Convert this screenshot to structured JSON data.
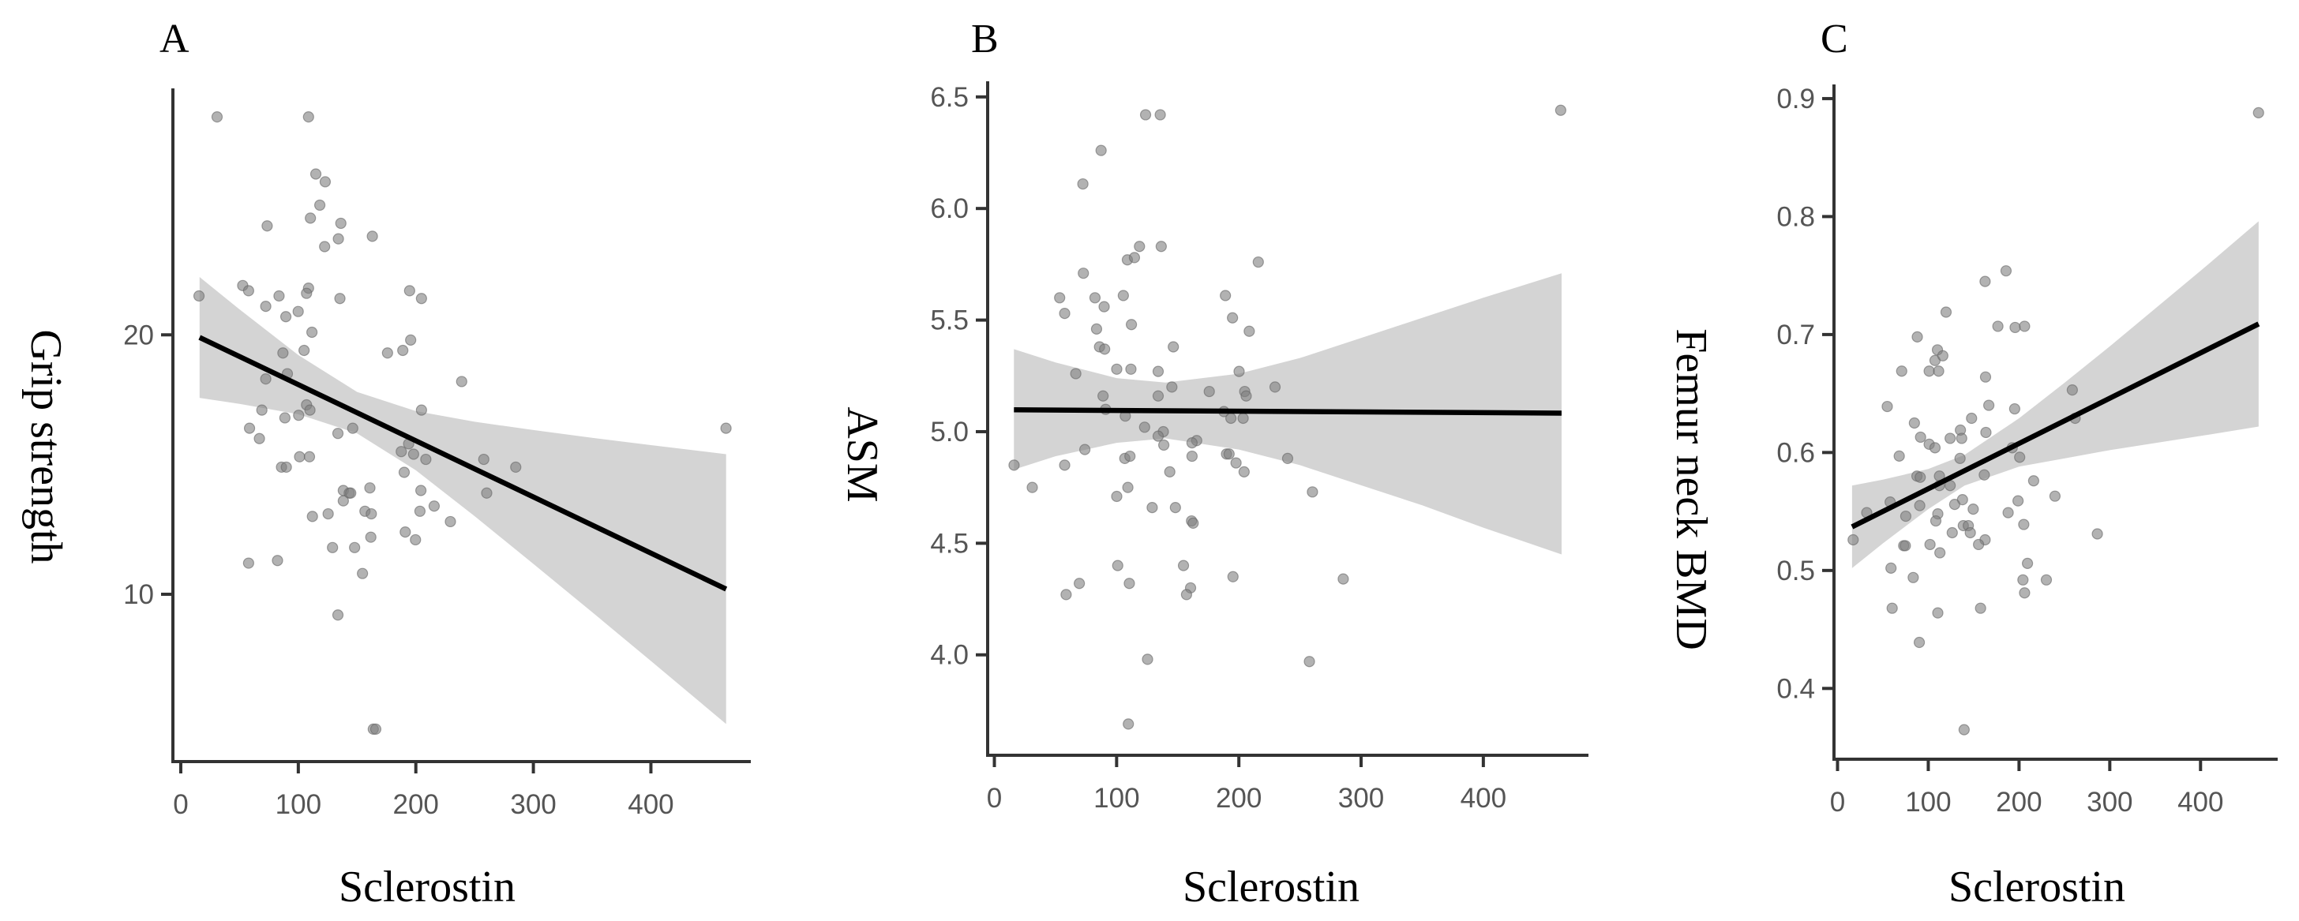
{
  "chart_data": [
    {
      "type": "scatter",
      "panel_label": "A",
      "title": "",
      "xlabel": "Sclerostin",
      "ylabel": "Grip strength",
      "xlim": [
        -6.7,
        485
      ],
      "ylim": [
        3.55,
        29.5
      ],
      "xticks": [
        0,
        100,
        200,
        300,
        400
      ],
      "yticks": [
        10,
        20
      ],
      "grid": false,
      "colors": {
        "point": "#7f7f7f",
        "line": "#000000",
        "band": "#d4d4d4"
      },
      "points": [
        [
          30.9,
          28.4
        ],
        [
          108.7,
          28.4
        ],
        [
          114.9,
          26.2
        ],
        [
          122.9,
          25.9
        ],
        [
          118.3,
          25.0
        ],
        [
          110.3,
          24.5
        ],
        [
          73.5,
          24.2
        ],
        [
          136.2,
          24.3
        ],
        [
          134.1,
          23.7
        ],
        [
          163,
          23.8
        ],
        [
          122.4,
          23.4
        ],
        [
          15.5,
          21.5
        ],
        [
          52.7,
          21.9
        ],
        [
          57.7,
          21.7
        ],
        [
          83.6,
          21.5
        ],
        [
          108.7,
          21.8
        ],
        [
          107,
          21.6
        ],
        [
          72.3,
          21.1
        ],
        [
          99.9,
          20.9
        ],
        [
          89.4,
          20.7
        ],
        [
          135.4,
          21.4
        ],
        [
          194.7,
          21.7
        ],
        [
          204.8,
          21.4
        ],
        [
          111.6,
          20.1
        ],
        [
          195.6,
          19.8
        ],
        [
          86.9,
          19.3
        ],
        [
          104.9,
          19.4
        ],
        [
          175.9,
          19.3
        ],
        [
          188.9,
          19.4
        ],
        [
          90.7,
          18.5
        ],
        [
          72.3,
          18.3
        ],
        [
          239,
          18.2
        ],
        [
          69,
          17.1
        ],
        [
          107,
          17.3
        ],
        [
          109.9,
          17.1
        ],
        [
          204.8,
          17.1
        ],
        [
          88.6,
          16.8
        ],
        [
          100.3,
          16.9
        ],
        [
          58.5,
          16.4
        ],
        [
          66.9,
          16.0
        ],
        [
          133.7,
          16.2
        ],
        [
          146.3,
          16.4
        ],
        [
          463.9,
          16.4
        ],
        [
          187.6,
          15.5
        ],
        [
          193.9,
          15.8
        ],
        [
          198.1,
          15.4
        ],
        [
          208.5,
          15.2
        ],
        [
          101.1,
          15.3
        ],
        [
          109.5,
          15.3
        ],
        [
          85.7,
          14.9
        ],
        [
          89.8,
          14.9
        ],
        [
          190.1,
          14.7
        ],
        [
          257.8,
          15.2
        ],
        [
          285,
          14.9
        ],
        [
          138.3,
          14.0
        ],
        [
          143.3,
          13.9
        ],
        [
          144.6,
          13.9
        ],
        [
          160.9,
          14.1
        ],
        [
          204.3,
          14.0
        ],
        [
          260.3,
          13.9
        ],
        [
          138.3,
          13.6
        ],
        [
          156.7,
          13.2
        ],
        [
          162.1,
          13.1
        ],
        [
          112,
          13.0
        ],
        [
          125.4,
          13.1
        ],
        [
          203.5,
          13.2
        ],
        [
          215.6,
          13.4
        ],
        [
          229.4,
          12.8
        ],
        [
          191,
          12.4
        ],
        [
          161.7,
          12.2
        ],
        [
          199.7,
          12.1
        ],
        [
          129.1,
          11.8
        ],
        [
          147.9,
          11.8
        ],
        [
          57.7,
          11.2
        ],
        [
          82.3,
          11.3
        ],
        [
          154.6,
          10.8
        ],
        [
          133.7,
          9.2
        ],
        [
          163.8,
          4.8
        ],
        [
          165.9,
          4.8
        ]
      ],
      "fit_line": {
        "x": [
          16,
          464
        ],
        "y": [
          19.9,
          10.2
        ]
      },
      "confidence_band": {
        "x": [
          16,
          50,
          100,
          150,
          200,
          250,
          300,
          350,
          400,
          464
        ],
        "lower": [
          17.57,
          17.34,
          16.94,
          16.2,
          14.78,
          13.01,
          11.17,
          9.31,
          7.43,
          5.0
        ],
        "upper": [
          22.23,
          20.98,
          19.22,
          17.8,
          17.06,
          16.65,
          16.33,
          16.03,
          15.75,
          15.4
        ]
      }
    },
    {
      "type": "scatter",
      "panel_label": "B",
      "title": "",
      "xlabel": "Sclerostin",
      "ylabel": "ASM",
      "xlim": [
        -5.5,
        486
      ],
      "ylim": [
        3.55,
        6.57
      ],
      "xticks": [
        0,
        100,
        200,
        300,
        400
      ],
      "yticks": [
        "4.0",
        "4.5",
        "5.0",
        "5.5",
        "6.0",
        "6.5"
      ],
      "grid": false,
      "colors": {
        "point": "#7f7f7f",
        "line": "#000000",
        "band": "#d4d4d4"
      },
      "points": [
        [
          123.7,
          6.42
        ],
        [
          135.7,
          6.42
        ],
        [
          463.3,
          6.44
        ],
        [
          87.3,
          6.26
        ],
        [
          72.4,
          6.11
        ],
        [
          118.7,
          5.83
        ],
        [
          136.5,
          5.83
        ],
        [
          108.8,
          5.77
        ],
        [
          114.6,
          5.78
        ],
        [
          215.9,
          5.76
        ],
        [
          72.8,
          5.71
        ],
        [
          53.4,
          5.6
        ],
        [
          82.3,
          5.6
        ],
        [
          105.5,
          5.61
        ],
        [
          189,
          5.61
        ],
        [
          89.8,
          5.56
        ],
        [
          57.5,
          5.53
        ],
        [
          194.8,
          5.51
        ],
        [
          112.1,
          5.48
        ],
        [
          83.6,
          5.46
        ],
        [
          208.5,
          5.45
        ],
        [
          86,
          5.38
        ],
        [
          90.2,
          5.37
        ],
        [
          146.4,
          5.38
        ],
        [
          66.6,
          5.26
        ],
        [
          100.1,
          5.28
        ],
        [
          111.7,
          5.28
        ],
        [
          134,
          5.27
        ],
        [
          200.2,
          5.27
        ],
        [
          145.2,
          5.2
        ],
        [
          229.6,
          5.2
        ],
        [
          175.8,
          5.18
        ],
        [
          204.8,
          5.18
        ],
        [
          88.9,
          5.16
        ],
        [
          134,
          5.16
        ],
        [
          206,
          5.16
        ],
        [
          91,
          5.1
        ],
        [
          187.8,
          5.09
        ],
        [
          107.1,
          5.07
        ],
        [
          193.5,
          5.06
        ],
        [
          203.5,
          5.06
        ],
        [
          122.9,
          5.02
        ],
        [
          138.2,
          5.0
        ],
        [
          134,
          4.98
        ],
        [
          165.5,
          4.96
        ],
        [
          161.7,
          4.95
        ],
        [
          138.6,
          4.94
        ],
        [
          74,
          4.92
        ],
        [
          106.7,
          4.88
        ],
        [
          110.9,
          4.89
        ],
        [
          161.7,
          4.89
        ],
        [
          189.9,
          4.9
        ],
        [
          192,
          4.9
        ],
        [
          239.9,
          4.88
        ],
        [
          197.7,
          4.86
        ],
        [
          16.1,
          4.85
        ],
        [
          57.5,
          4.85
        ],
        [
          143.5,
          4.82
        ],
        [
          204.3,
          4.82
        ],
        [
          31,
          4.75
        ],
        [
          109.2,
          4.75
        ],
        [
          260.2,
          4.73
        ],
        [
          100.1,
          4.71
        ],
        [
          129.1,
          4.66
        ],
        [
          148.1,
          4.66
        ],
        [
          161.3,
          4.6
        ],
        [
          162.6,
          4.59
        ],
        [
          100.9,
          4.4
        ],
        [
          154.7,
          4.4
        ],
        [
          195.2,
          4.35
        ],
        [
          285.4,
          4.34
        ],
        [
          69.5,
          4.32
        ],
        [
          110.4,
          4.32
        ],
        [
          160.5,
          4.3
        ],
        [
          58.7,
          4.27
        ],
        [
          157.2,
          4.27
        ],
        [
          125.3,
          3.98
        ],
        [
          257.7,
          3.97
        ],
        [
          109.6,
          3.69
        ]
      ],
      "fit_line": {
        "x": [
          16,
          464
        ],
        "y": [
          5.098,
          5.083
        ]
      },
      "confidence_band": {
        "x": [
          16,
          50,
          100,
          140,
          200,
          250,
          300,
          350,
          400,
          464
        ],
        "lower": [
          4.83,
          4.89,
          4.95,
          4.97,
          4.92,
          4.85,
          4.76,
          4.67,
          4.57,
          4.45
        ],
        "upper": [
          5.37,
          5.31,
          5.24,
          5.22,
          5.26,
          5.33,
          5.42,
          5.51,
          5.6,
          5.71
        ]
      }
    },
    {
      "type": "scatter",
      "panel_label": "C",
      "title": "",
      "xlabel": "Sclerostin",
      "ylabel": "Femur neck BMD",
      "xlim": [
        -3.9,
        485
      ],
      "ylim": [
        0.34,
        0.912
      ],
      "xticks": [
        0,
        100,
        200,
        300,
        400
      ],
      "yticks": [
        "0.4",
        "0.5",
        "0.6",
        "0.7",
        "0.8",
        "0.9"
      ],
      "grid": false,
      "colors": {
        "point": "#7f7f7f",
        "line": "#000000",
        "band": "#d4d4d4"
      },
      "points": [
        [
          463.9,
          0.888
        ],
        [
          185.7,
          0.754
        ],
        [
          162.6,
          0.745
        ],
        [
          119.6,
          0.719
        ],
        [
          176.7,
          0.707
        ],
        [
          195.7,
          0.706
        ],
        [
          206.1,
          0.707
        ],
        [
          87.9,
          0.698
        ],
        [
          110.1,
          0.687
        ],
        [
          107.4,
          0.678
        ],
        [
          116,
          0.682
        ],
        [
          70.7,
          0.669
        ],
        [
          101,
          0.669
        ],
        [
          111.4,
          0.669
        ],
        [
          163.1,
          0.664
        ],
        [
          258.7,
          0.653
        ],
        [
          54.8,
          0.639
        ],
        [
          166.7,
          0.64
        ],
        [
          195.2,
          0.637
        ],
        [
          261.8,
          0.629
        ],
        [
          147.7,
          0.629
        ],
        [
          84.7,
          0.625
        ],
        [
          135.4,
          0.619
        ],
        [
          163.5,
          0.617
        ],
        [
          91.5,
          0.613
        ],
        [
          124.1,
          0.612
        ],
        [
          136.8,
          0.612
        ],
        [
          101,
          0.607
        ],
        [
          107.4,
          0.604
        ],
        [
          192.5,
          0.604
        ],
        [
          68,
          0.597
        ],
        [
          135,
          0.595
        ],
        [
          200.7,
          0.596
        ],
        [
          87.5,
          0.58
        ],
        [
          91.1,
          0.579
        ],
        [
          112.3,
          0.58
        ],
        [
          161.7,
          0.581
        ],
        [
          216.1,
          0.576
        ],
        [
          112.3,
          0.572
        ],
        [
          124.1,
          0.572
        ],
        [
          239.6,
          0.563
        ],
        [
          137.7,
          0.56
        ],
        [
          198.9,
          0.559
        ],
        [
          58,
          0.558
        ],
        [
          90.6,
          0.555
        ],
        [
          129.1,
          0.556
        ],
        [
          149.5,
          0.552
        ],
        [
          32.2,
          0.549
        ],
        [
          110.5,
          0.548
        ],
        [
          188,
          0.549
        ],
        [
          75.2,
          0.546
        ],
        [
          108.3,
          0.542
        ],
        [
          138.6,
          0.538
        ],
        [
          144.1,
          0.538
        ],
        [
          205.2,
          0.539
        ],
        [
          146.3,
          0.532
        ],
        [
          126.4,
          0.532
        ],
        [
          286.3,
          0.531
        ],
        [
          162.6,
          0.526
        ],
        [
          17.2,
          0.526
        ],
        [
          72.9,
          0.521
        ],
        [
          74.7,
          0.521
        ],
        [
          101.9,
          0.522
        ],
        [
          155.4,
          0.522
        ],
        [
          112.8,
          0.515
        ],
        [
          209.3,
          0.506
        ],
        [
          58.9,
          0.502
        ],
        [
          83.4,
          0.494
        ],
        [
          204.3,
          0.492
        ],
        [
          230.1,
          0.492
        ],
        [
          206.1,
          0.481
        ],
        [
          60.2,
          0.468
        ],
        [
          157.6,
          0.468
        ],
        [
          110.5,
          0.464
        ],
        [
          90.1,
          0.439
        ],
        [
          139.5,
          0.365
        ]
      ],
      "fit_line": {
        "x": [
          16,
          464
        ],
        "y": [
          0.537,
          0.709
        ]
      },
      "confidence_band": {
        "x": [
          16,
          50,
          100,
          140,
          200,
          250,
          300,
          350,
          400,
          464
        ],
        "lower": [
          0.502,
          0.523,
          0.552,
          0.572,
          0.588,
          0.595,
          0.602,
          0.608,
          0.614,
          0.622
        ],
        "upper": [
          0.572,
          0.577,
          0.586,
          0.598,
          0.629,
          0.659,
          0.69,
          0.722,
          0.754,
          0.796
        ]
      }
    }
  ]
}
